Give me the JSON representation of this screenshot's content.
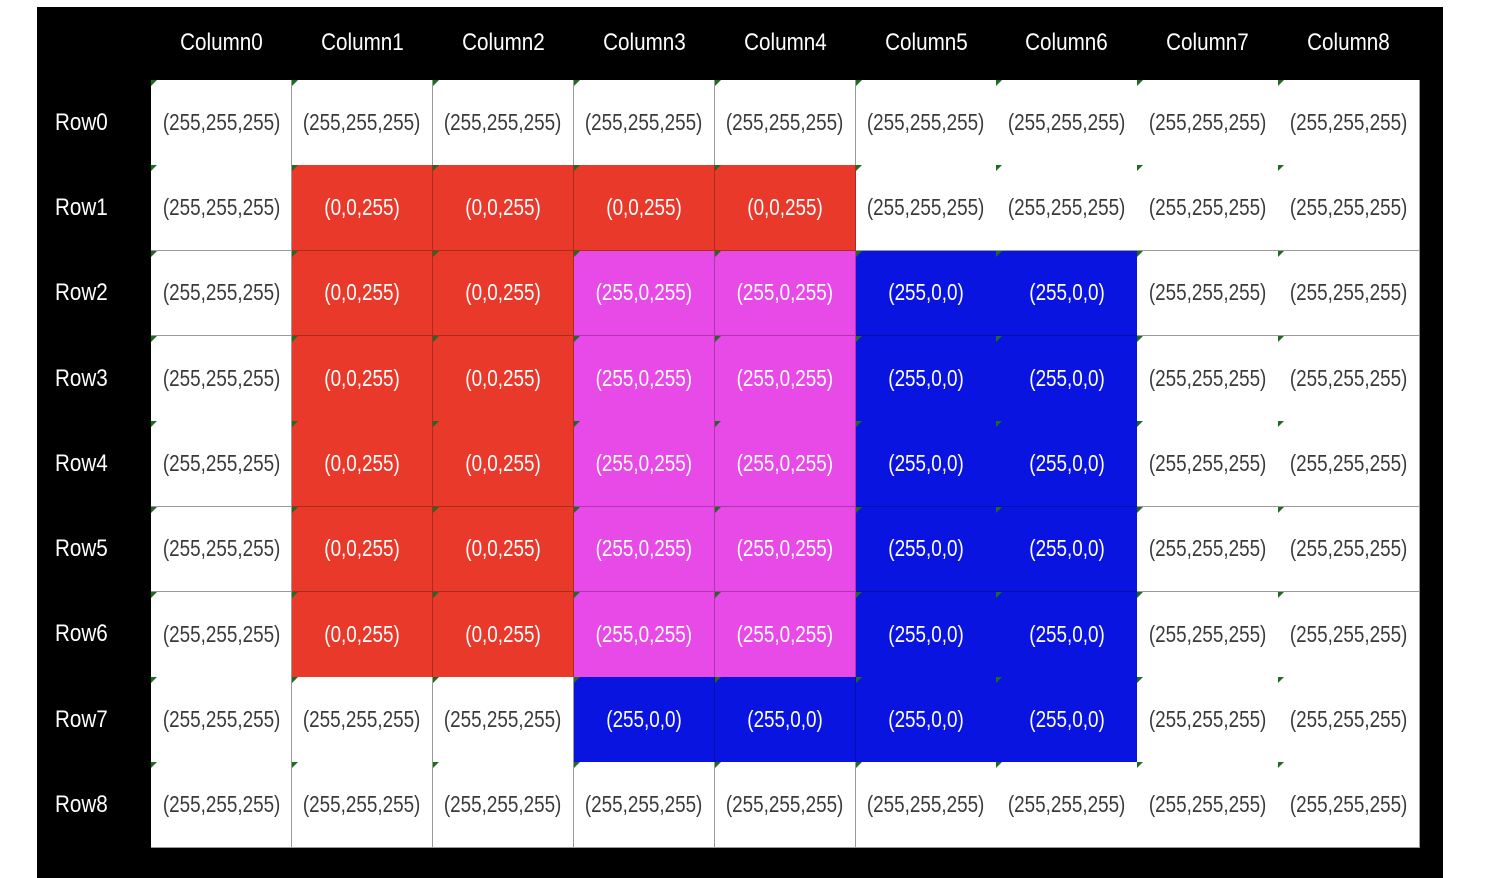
{
  "columns": [
    "Column0",
    "Column1",
    "Column2",
    "Column3",
    "Column4",
    "Column5",
    "Column6",
    "Column7",
    "Column8"
  ],
  "rows": [
    "Row0",
    "Row1",
    "Row2",
    "Row3",
    "Row4",
    "Row5",
    "Row6",
    "Row7",
    "Row8"
  ],
  "palette": {
    "W": {
      "bg": "#ffffff",
      "fg": "#3a3a3a"
    },
    "R": {
      "bg": "#e8392a",
      "fg": "#ffffff"
    },
    "P": {
      "bg": "#e84ae8",
      "fg": "#ffffff"
    },
    "B": {
      "bg": "#0a14e0",
      "fg": "#ffffff"
    }
  },
  "cells": [
    [
      {
        "text": "(255,255,255)",
        "color": "W"
      },
      {
        "text": "(255,255,255)",
        "color": "W"
      },
      {
        "text": "(255,255,255)",
        "color": "W"
      },
      {
        "text": "(255,255,255)",
        "color": "W"
      },
      {
        "text": "(255,255,255)",
        "color": "W"
      },
      {
        "text": "(255,255,255)",
        "color": "W"
      },
      {
        "text": "(255,255,255)",
        "color": "W"
      },
      {
        "text": "(255,255,255)",
        "color": "W"
      },
      {
        "text": "(255,255,255)",
        "color": "W"
      }
    ],
    [
      {
        "text": "(255,255,255)",
        "color": "W"
      },
      {
        "text": "(0,0,255)",
        "color": "R"
      },
      {
        "text": "(0,0,255)",
        "color": "R"
      },
      {
        "text": "(0,0,255)",
        "color": "R"
      },
      {
        "text": "(0,0,255)",
        "color": "R"
      },
      {
        "text": "(255,255,255)",
        "color": "W"
      },
      {
        "text": "(255,255,255)",
        "color": "W"
      },
      {
        "text": "(255,255,255)",
        "color": "W"
      },
      {
        "text": "(255,255,255)",
        "color": "W"
      }
    ],
    [
      {
        "text": "(255,255,255)",
        "color": "W"
      },
      {
        "text": "(0,0,255)",
        "color": "R"
      },
      {
        "text": "(0,0,255)",
        "color": "R"
      },
      {
        "text": "(255,0,255)",
        "color": "P"
      },
      {
        "text": "(255,0,255)",
        "color": "P"
      },
      {
        "text": "(255,0,0)",
        "color": "B"
      },
      {
        "text": "(255,0,0)",
        "color": "B"
      },
      {
        "text": "(255,255,255)",
        "color": "W"
      },
      {
        "text": "(255,255,255)",
        "color": "W"
      }
    ],
    [
      {
        "text": "(255,255,255)",
        "color": "W"
      },
      {
        "text": "(0,0,255)",
        "color": "R"
      },
      {
        "text": "(0,0,255)",
        "color": "R"
      },
      {
        "text": "(255,0,255)",
        "color": "P"
      },
      {
        "text": "(255,0,255)",
        "color": "P"
      },
      {
        "text": "(255,0,0)",
        "color": "B"
      },
      {
        "text": "(255,0,0)",
        "color": "B"
      },
      {
        "text": "(255,255,255)",
        "color": "W"
      },
      {
        "text": "(255,255,255)",
        "color": "W"
      }
    ],
    [
      {
        "text": "(255,255,255)",
        "color": "W"
      },
      {
        "text": "(0,0,255)",
        "color": "R"
      },
      {
        "text": "(0,0,255)",
        "color": "R"
      },
      {
        "text": "(255,0,255)",
        "color": "P"
      },
      {
        "text": "(255,0,255)",
        "color": "P"
      },
      {
        "text": "(255,0,0)",
        "color": "B"
      },
      {
        "text": "(255,0,0)",
        "color": "B"
      },
      {
        "text": "(255,255,255)",
        "color": "W"
      },
      {
        "text": "(255,255,255)",
        "color": "W"
      }
    ],
    [
      {
        "text": "(255,255,255)",
        "color": "W"
      },
      {
        "text": "(0,0,255)",
        "color": "R"
      },
      {
        "text": "(0,0,255)",
        "color": "R"
      },
      {
        "text": "(255,0,255)",
        "color": "P"
      },
      {
        "text": "(255,0,255)",
        "color": "P"
      },
      {
        "text": "(255,0,0)",
        "color": "B"
      },
      {
        "text": "(255,0,0)",
        "color": "B"
      },
      {
        "text": "(255,255,255)",
        "color": "W"
      },
      {
        "text": "(255,255,255)",
        "color": "W"
      }
    ],
    [
      {
        "text": "(255,255,255)",
        "color": "W"
      },
      {
        "text": "(0,0,255)",
        "color": "R"
      },
      {
        "text": "(0,0,255)",
        "color": "R"
      },
      {
        "text": "(255,0,255)",
        "color": "P"
      },
      {
        "text": "(255,0,255)",
        "color": "P"
      },
      {
        "text": "(255,0,0)",
        "color": "B"
      },
      {
        "text": "(255,0,0)",
        "color": "B"
      },
      {
        "text": "(255,255,255)",
        "color": "W"
      },
      {
        "text": "(255,255,255)",
        "color": "W"
      }
    ],
    [
      {
        "text": "(255,255,255)",
        "color": "W"
      },
      {
        "text": "(255,255,255)",
        "color": "W"
      },
      {
        "text": "(255,255,255)",
        "color": "W"
      },
      {
        "text": "(255,0,0)",
        "color": "B"
      },
      {
        "text": "(255,0,0)",
        "color": "B"
      },
      {
        "text": "(255,0,0)",
        "color": "B"
      },
      {
        "text": "(255,0,0)",
        "color": "B"
      },
      {
        "text": "(255,255,255)",
        "color": "W"
      },
      {
        "text": "(255,255,255)",
        "color": "W"
      }
    ],
    [
      {
        "text": "(255,255,255)",
        "color": "W"
      },
      {
        "text": "(255,255,255)",
        "color": "W"
      },
      {
        "text": "(255,255,255)",
        "color": "W"
      },
      {
        "text": "(255,255,255)",
        "color": "W"
      },
      {
        "text": "(255,255,255)",
        "color": "W"
      },
      {
        "text": "(255,255,255)",
        "color": "W"
      },
      {
        "text": "(255,255,255)",
        "color": "W"
      },
      {
        "text": "(255,255,255)",
        "color": "W"
      },
      {
        "text": "(255,255,255)",
        "color": "W"
      }
    ]
  ]
}
